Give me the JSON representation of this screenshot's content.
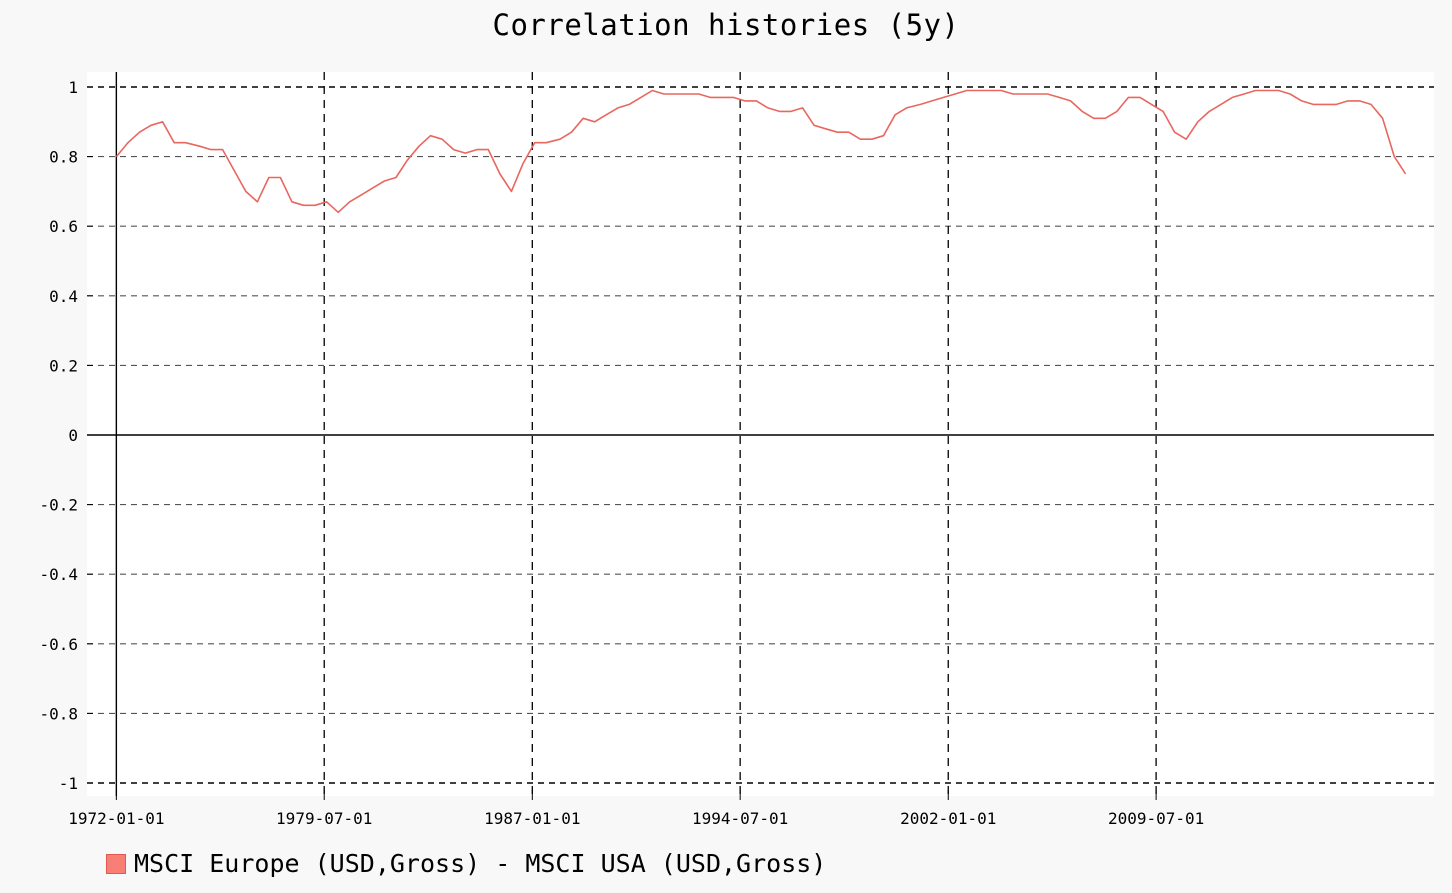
{
  "chart_data": {
    "type": "line",
    "title": "Correlation histories (5y)",
    "xlabel": "",
    "ylabel": "",
    "ylim": [
      -1,
      1
    ],
    "yticks": [
      1,
      0.8,
      0.6,
      0.4,
      0.2,
      0,
      -0.2,
      -0.4,
      -0.6,
      -0.8,
      -1
    ],
    "ytick_labels": [
      "1",
      "0.8",
      "0.6",
      "0.4",
      "0.2",
      "0",
      "-0.2",
      "-0.4",
      "-0.6",
      "-0.8",
      "-1"
    ],
    "xlim": [
      "1971-12-01",
      "2018-08-01"
    ],
    "xtick_labels": [
      "1972-01-01",
      "1979-07-01",
      "1987-01-01",
      "1994-07-01",
      "2002-01-01",
      "2009-07-01"
    ],
    "grid": true,
    "legend_placement": "bottom-left",
    "series": [
      {
        "name": "MSCI Europe (USD,Gross) - MSCI USA (USD,Gross)",
        "color": "#e8675f",
        "x": [
          "1972-01-01",
          "1972-06-01",
          "1972-11-01",
          "1973-04-01",
          "1973-09-01",
          "1974-02-01",
          "1974-07-01",
          "1975-01-01",
          "1975-06-01",
          "1975-11-01",
          "1976-04-01",
          "1976-09-01",
          "1977-02-01",
          "1977-07-01",
          "1977-12-01",
          "1978-05-01",
          "1978-10-01",
          "1979-03-01",
          "1979-08-01",
          "1980-01-01",
          "1980-06-01",
          "1980-11-01",
          "1981-04-01",
          "1981-09-01",
          "1982-02-01",
          "1982-07-01",
          "1982-12-01",
          "1983-05-01",
          "1983-10-01",
          "1984-03-01",
          "1984-08-01",
          "1985-01-01",
          "1985-06-01",
          "1985-11-01",
          "1986-04-01",
          "1986-09-01",
          "1987-02-01",
          "1987-07-01",
          "1988-01-01",
          "1988-06-01",
          "1988-11-01",
          "1989-04-01",
          "1989-09-01",
          "1990-02-01",
          "1990-07-01",
          "1990-12-01",
          "1991-05-01",
          "1991-10-01",
          "1992-03-01",
          "1992-08-01",
          "1993-01-01",
          "1993-06-01",
          "1993-11-01",
          "1994-04-01",
          "1994-09-01",
          "1995-02-01",
          "1995-07-01",
          "1995-12-01",
          "1996-05-01",
          "1996-10-01",
          "1997-03-01",
          "1997-08-01",
          "1998-01-01",
          "1998-06-01",
          "1998-11-01",
          "1999-04-01",
          "1999-09-01",
          "2000-02-01",
          "2000-07-01",
          "2001-01-01",
          "2001-06-01",
          "2001-11-01",
          "2002-04-01",
          "2002-09-01",
          "2003-02-01",
          "2003-07-01",
          "2003-12-01",
          "2004-05-01",
          "2004-10-01",
          "2005-03-01",
          "2005-08-01",
          "2006-01-01",
          "2006-06-01",
          "2006-11-01",
          "2007-04-01",
          "2007-09-01",
          "2008-02-01",
          "2008-07-01",
          "2008-12-01",
          "2009-05-01",
          "2009-10-01",
          "2010-03-01",
          "2010-08-01",
          "2011-01-01",
          "2011-06-01",
          "2011-11-01",
          "2012-04-01",
          "2012-09-01",
          "2013-02-01",
          "2013-07-01",
          "2013-12-01",
          "2014-05-01",
          "2014-10-01",
          "2015-03-01",
          "2015-08-01",
          "2016-01-01",
          "2016-06-01",
          "2016-11-01",
          "2017-04-01",
          "2017-09-01",
          "2018-02-01",
          "2018-07-01"
        ],
        "values": [
          0.8,
          0.84,
          0.87,
          0.89,
          0.9,
          0.84,
          0.84,
          0.83,
          0.82,
          0.82,
          0.76,
          0.7,
          0.67,
          0.74,
          0.74,
          0.67,
          0.66,
          0.66,
          0.67,
          0.64,
          0.67,
          0.69,
          0.71,
          0.73,
          0.74,
          0.79,
          0.83,
          0.86,
          0.85,
          0.82,
          0.81,
          0.82,
          0.82,
          0.75,
          0.7,
          0.78,
          0.84,
          0.84,
          0.85,
          0.87,
          0.91,
          0.9,
          0.92,
          0.94,
          0.95,
          0.97,
          0.99,
          0.98,
          0.98,
          0.98,
          0.98,
          0.97,
          0.97,
          0.97,
          0.96,
          0.96,
          0.94,
          0.93,
          0.93,
          0.94,
          0.89,
          0.88,
          0.87,
          0.87,
          0.85,
          0.85,
          0.86,
          0.92,
          0.94,
          0.95,
          0.96,
          0.97,
          0.98,
          0.99,
          0.99,
          0.99,
          0.99,
          0.98,
          0.98,
          0.98,
          0.98,
          0.97,
          0.96,
          0.93,
          0.91,
          0.91,
          0.93,
          0.97,
          0.97,
          0.95,
          0.93,
          0.87,
          0.85,
          0.9,
          0.93,
          0.95,
          0.97,
          0.98,
          0.99,
          0.99,
          0.99,
          0.98,
          0.96,
          0.95,
          0.95,
          0.95,
          0.96,
          0.96,
          0.95,
          0.91,
          0.8,
          0.75
        ]
      }
    ]
  }
}
